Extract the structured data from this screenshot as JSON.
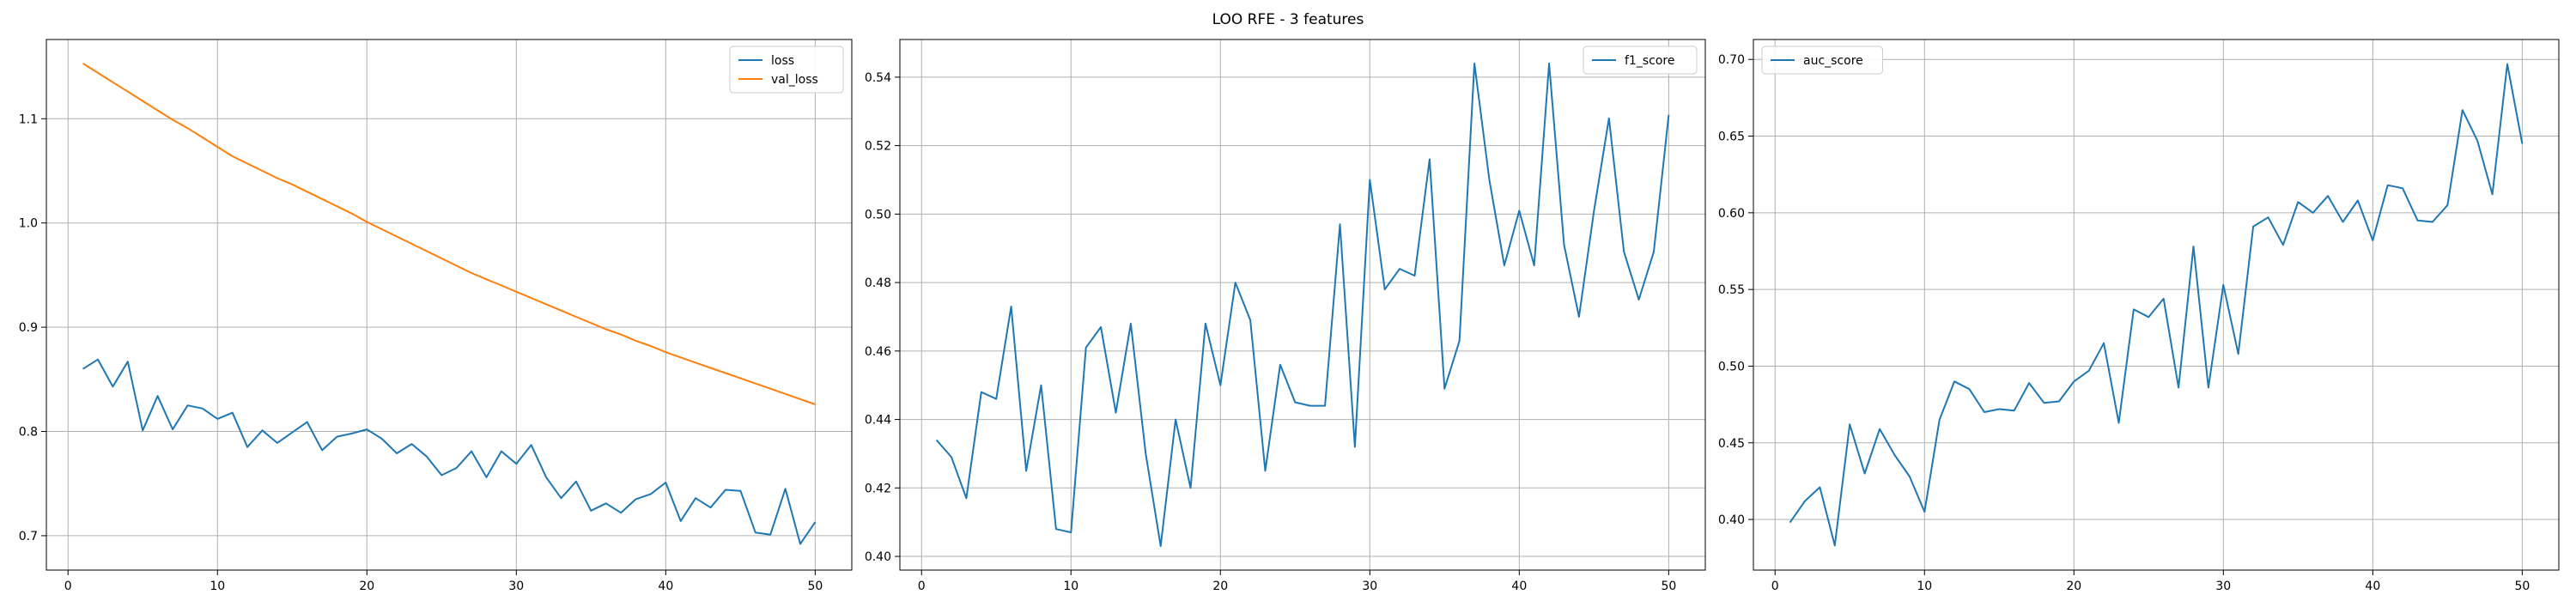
{
  "figure": {
    "title": "LOO RFE - 3 features"
  },
  "colors": {
    "blue": "#1f77b4",
    "orange": "#ff7f0e",
    "grid": "#b0b0b0",
    "axis": "#000000"
  },
  "chart_data": [
    {
      "type": "line",
      "title": "",
      "xlabel": "",
      "ylabel": "",
      "xlim": [
        -1.45,
        52.45
      ],
      "ylim": [
        0.667,
        1.176
      ],
      "xticks": [
        0,
        10,
        20,
        30,
        40,
        50
      ],
      "xtick_labels": [
        "0",
        "10",
        "20",
        "30",
        "40",
        "50"
      ],
      "yticks": [
        0.7,
        0.8,
        0.9,
        1.0,
        1.1
      ],
      "ytick_labels": [
        "0.7",
        "0.8",
        "0.9",
        "1.0",
        "1.1"
      ],
      "grid": true,
      "legend_position": "top-right",
      "x_start": 1,
      "series": [
        {
          "name": "loss",
          "color": "#1f77b4",
          "values": [
            0.86,
            0.869,
            0.843,
            0.867,
            0.801,
            0.834,
            0.802,
            0.825,
            0.822,
            0.812,
            0.818,
            0.785,
            0.801,
            0.789,
            0.799,
            0.809,
            0.782,
            0.795,
            0.798,
            0.802,
            0.793,
            0.779,
            0.788,
            0.776,
            0.758,
            0.765,
            0.781,
            0.756,
            0.781,
            0.769,
            0.787,
            0.756,
            0.736,
            0.752,
            0.724,
            0.731,
            0.722,
            0.735,
            0.74,
            0.751,
            0.714,
            0.736,
            0.727,
            0.744,
            0.743,
            0.703,
            0.701,
            0.745,
            0.692,
            0.713
          ]
        },
        {
          "name": "val_loss",
          "color": "#ff7f0e",
          "values": [
            1.153,
            1.144,
            1.135,
            1.126,
            1.117,
            1.108,
            1.099,
            1.091,
            1.082,
            1.073,
            1.064,
            1.057,
            1.05,
            1.043,
            1.037,
            1.03,
            1.023,
            1.016,
            1.009,
            1.001,
            0.994,
            0.987,
            0.98,
            0.973,
            0.966,
            0.959,
            0.952,
            0.946,
            0.94,
            0.934,
            0.928,
            0.922,
            0.916,
            0.91,
            0.904,
            0.898,
            0.893,
            0.887,
            0.882,
            0.876,
            0.871,
            0.866,
            0.861,
            0.856,
            0.851,
            0.846,
            0.841,
            0.836,
            0.831,
            0.826
          ]
        }
      ]
    },
    {
      "type": "line",
      "title": "",
      "xlabel": "",
      "ylabel": "",
      "xlim": [
        -1.45,
        52.45
      ],
      "ylim": [
        0.396,
        0.551
      ],
      "xticks": [
        0,
        10,
        20,
        30,
        40,
        50
      ],
      "xtick_labels": [
        "0",
        "10",
        "20",
        "30",
        "40",
        "50"
      ],
      "yticks": [
        0.4,
        0.42,
        0.44,
        0.46,
        0.48,
        0.5,
        0.52,
        0.54
      ],
      "ytick_labels": [
        "0.40",
        "0.42",
        "0.44",
        "0.46",
        "0.48",
        "0.50",
        "0.52",
        "0.54"
      ],
      "grid": true,
      "legend_position": "top-right",
      "x_start": 1,
      "series": [
        {
          "name": "f1_score",
          "color": "#1f77b4",
          "values": [
            0.434,
            0.429,
            0.417,
            0.448,
            0.446,
            0.473,
            0.425,
            0.45,
            0.408,
            0.407,
            0.461,
            0.467,
            0.442,
            0.468,
            0.43,
            0.403,
            0.44,
            0.42,
            0.468,
            0.45,
            0.48,
            0.469,
            0.425,
            0.456,
            0.445,
            0.444,
            0.444,
            0.497,
            0.432,
            0.51,
            0.478,
            0.484,
            0.482,
            0.516,
            0.449,
            0.463,
            0.544,
            0.51,
            0.485,
            0.501,
            0.485,
            0.544,
            0.491,
            0.47,
            0.501,
            0.528,
            0.489,
            0.475,
            0.489,
            0.529
          ]
        }
      ]
    },
    {
      "type": "line",
      "title": "",
      "xlabel": "",
      "ylabel": "",
      "xlim": [
        -1.45,
        52.45
      ],
      "ylim": [
        0.367,
        0.713
      ],
      "xticks": [
        0,
        10,
        20,
        30,
        40,
        50
      ],
      "xtick_labels": [
        "0",
        "10",
        "20",
        "30",
        "40",
        "50"
      ],
      "yticks": [
        0.4,
        0.45,
        0.5,
        0.55,
        0.6,
        0.65,
        0.7
      ],
      "ytick_labels": [
        "0.40",
        "0.45",
        "0.50",
        "0.55",
        "0.60",
        "0.65",
        "0.70"
      ],
      "grid": true,
      "legend_position": "top-left",
      "x_start": 1,
      "series": [
        {
          "name": "auc_score",
          "color": "#1f77b4",
          "values": [
            0.398,
            0.412,
            0.421,
            0.383,
            0.462,
            0.43,
            0.459,
            0.442,
            0.428,
            0.405,
            0.465,
            0.49,
            0.485,
            0.47,
            0.472,
            0.471,
            0.489,
            0.476,
            0.477,
            0.49,
            0.497,
            0.515,
            0.463,
            0.537,
            0.532,
            0.544,
            0.486,
            0.578,
            0.486,
            0.553,
            0.508,
            0.591,
            0.597,
            0.579,
            0.607,
            0.6,
            0.611,
            0.594,
            0.608,
            0.582,
            0.618,
            0.616,
            0.595,
            0.594,
            0.605,
            0.667,
            0.647,
            0.612,
            0.697,
            0.645
          ]
        }
      ]
    }
  ]
}
